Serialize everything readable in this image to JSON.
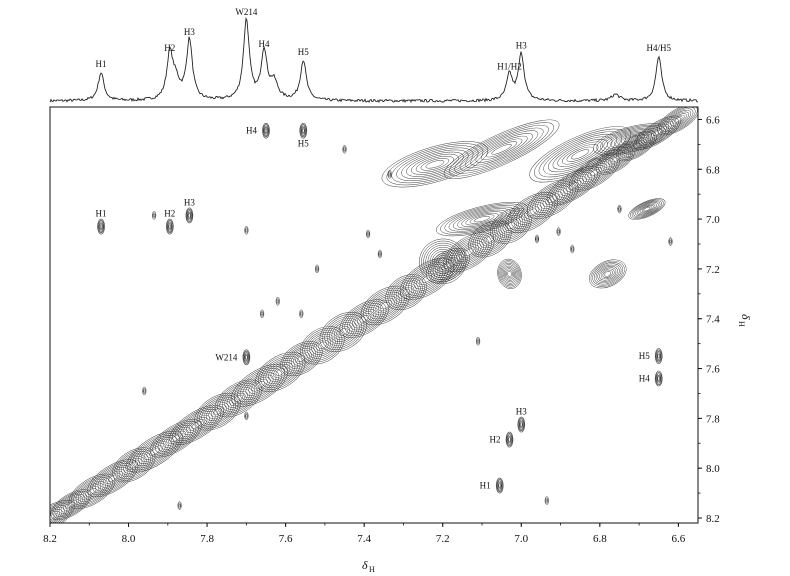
{
  "chart_data": {
    "type": "contour",
    "x": {
      "label": "δ",
      "label_sub": "H",
      "range": [
        8.2,
        6.55
      ],
      "ticks": [
        "8.2",
        "8.0",
        "7.8",
        "7.6",
        "7.4",
        "7.2",
        "7.0",
        "6.8",
        "6.6"
      ]
    },
    "y": {
      "label": "δ",
      "label_sub": "H",
      "range": [
        6.55,
        8.22
      ],
      "ticks": [
        "6.6",
        "6.8",
        "7.0",
        "7.2",
        "7.4",
        "7.6",
        "7.8",
        "8.0",
        "8.2"
      ],
      "side": "right"
    },
    "spectrum_1d": {
      "peaks": [
        {
          "label": "H1",
          "ppm": 8.07,
          "height": 0.35
        },
        {
          "label": "H2",
          "ppm": 7.895,
          "height": 0.55
        },
        {
          "label": "H3",
          "ppm": 7.845,
          "height": 0.75
        },
        {
          "label": "W214",
          "ppm": 7.7,
          "height": 1.0
        },
        {
          "label": "H4",
          "ppm": 7.655,
          "height": 0.6
        },
        {
          "label": "H5",
          "ppm": 7.555,
          "height": 0.5
        },
        {
          "label": "H1/H2",
          "ppm": 7.03,
          "height": 0.32
        },
        {
          "label": "H3",
          "ppm": 7.0,
          "height": 0.58
        },
        {
          "label": "H4/H5",
          "ppm": 6.65,
          "height": 0.55
        }
      ],
      "extra_shoulders": [
        {
          "ppm": 7.88,
          "height": 0.22
        },
        {
          "ppm": 7.63,
          "height": 0.22
        },
        {
          "ppm": 6.76,
          "height": 0.08
        }
      ]
    },
    "diagonal": {
      "from": 8.2,
      "to": 6.6
    },
    "cross_peaks": [
      {
        "label": "H4",
        "x": 7.65,
        "y": 6.645,
        "label_side": "left"
      },
      {
        "label": "H5",
        "x": 7.555,
        "y": 6.645,
        "label_side": "below"
      },
      {
        "label": "H1",
        "x": 8.07,
        "y": 7.03,
        "label_side": "above"
      },
      {
        "label": "H2",
        "x": 7.895,
        "y": 7.03,
        "label_side": "above"
      },
      {
        "label": "H3",
        "x": 7.845,
        "y": 6.985,
        "label_side": "above"
      },
      {
        "label": "W214",
        "x": 7.7,
        "y": 7.555,
        "label_side": "left"
      },
      {
        "label": "H5",
        "x": 6.65,
        "y": 7.55,
        "label_side": "left"
      },
      {
        "label": "H4",
        "x": 6.65,
        "y": 7.64,
        "label_side": "left"
      },
      {
        "label": "H3",
        "x": 7.0,
        "y": 7.825,
        "label_side": "above"
      },
      {
        "label": "H2",
        "x": 7.03,
        "y": 7.885,
        "label_side": "left"
      },
      {
        "label": "H1",
        "x": 7.055,
        "y": 8.07,
        "label_side": "left"
      }
    ],
    "unlabeled_peaks": [
      {
        "x": 7.935,
        "y": 6.985
      },
      {
        "x": 7.7,
        "y": 7.045
      },
      {
        "x": 7.45,
        "y": 6.72
      },
      {
        "x": 7.62,
        "y": 7.33
      },
      {
        "x": 7.66,
        "y": 7.38
      },
      {
        "x": 7.56,
        "y": 7.38
      },
      {
        "x": 7.52,
        "y": 7.2
      },
      {
        "x": 7.39,
        "y": 7.06
      },
      {
        "x": 7.36,
        "y": 7.14
      },
      {
        "x": 7.335,
        "y": 6.82
      },
      {
        "x": 7.11,
        "y": 7.49
      },
      {
        "x": 7.96,
        "y": 7.69
      },
      {
        "x": 7.7,
        "y": 7.79
      },
      {
        "x": 7.87,
        "y": 8.15
      },
      {
        "x": 6.935,
        "y": 8.13
      },
      {
        "x": 6.96,
        "y": 7.08
      },
      {
        "x": 6.905,
        "y": 7.05
      },
      {
        "x": 6.87,
        "y": 7.12
      },
      {
        "x": 6.62,
        "y": 7.09
      },
      {
        "x": 6.75,
        "y": 6.96
      }
    ],
    "spread_blobs": [
      {
        "x": 7.22,
        "y": 6.78,
        "rx": 0.14,
        "ry": 0.07
      },
      {
        "x": 7.05,
        "y": 6.72,
        "rx": 0.16,
        "ry": 0.06
      },
      {
        "x": 6.85,
        "y": 6.74,
        "rx": 0.14,
        "ry": 0.07
      },
      {
        "x": 6.72,
        "y": 6.68,
        "rx": 0.1,
        "ry": 0.05
      },
      {
        "x": 7.1,
        "y": 7.0,
        "rx": 0.12,
        "ry": 0.05
      },
      {
        "x": 7.2,
        "y": 7.17,
        "rx": 0.06,
        "ry": 0.09
      },
      {
        "x": 7.03,
        "y": 7.22,
        "rx": 0.03,
        "ry": 0.06
      },
      {
        "x": 6.78,
        "y": 7.22,
        "rx": 0.05,
        "ry": 0.05
      },
      {
        "x": 6.68,
        "y": 6.96,
        "rx": 0.05,
        "ry": 0.03
      }
    ]
  }
}
